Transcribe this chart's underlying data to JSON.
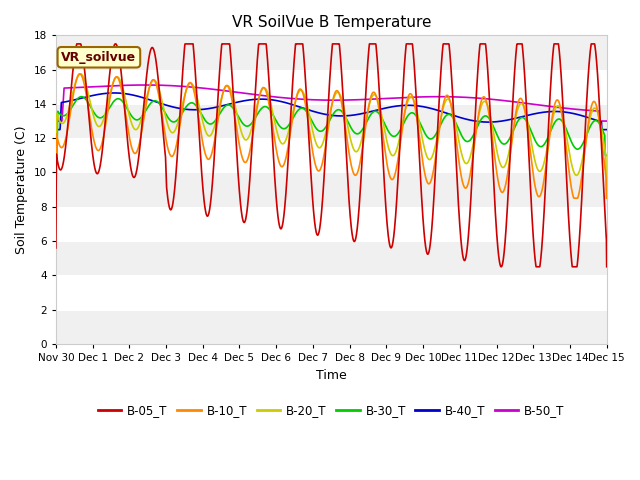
{
  "title": "VR SoilVue B Temperature",
  "xlabel": "Time",
  "ylabel": "Soil Temperature (C)",
  "annotation": "VR_soilvue",
  "ylim": [
    0,
    18
  ],
  "yticks": [
    0,
    2,
    4,
    6,
    8,
    10,
    12,
    14,
    16,
    18
  ],
  "xlim": [
    -1,
    14
  ],
  "series_colors": {
    "B-05_T": "#cc0000",
    "B-10_T": "#ff8800",
    "B-20_T": "#cccc00",
    "B-30_T": "#00cc00",
    "B-40_T": "#0000cc",
    "B-50_T": "#cc00cc"
  },
  "xtick_labels": [
    "Nov 30",
    "Dec 1",
    "Dec 2",
    "Dec 3",
    "Dec 4",
    "Dec 5",
    "Dec 6",
    "Dec 7",
    "Dec 8",
    "Dec 9",
    "Dec 10",
    "Dec 11",
    "Dec 12",
    "Dec 13",
    "Dec 14",
    "Dec 15"
  ],
  "xtick_positions": [
    -1,
    0,
    1,
    2,
    3,
    4,
    5,
    6,
    7,
    8,
    9,
    10,
    11,
    12,
    13,
    14
  ],
  "bg_light": "#f0f0f0",
  "bg_white": "#ffffff"
}
